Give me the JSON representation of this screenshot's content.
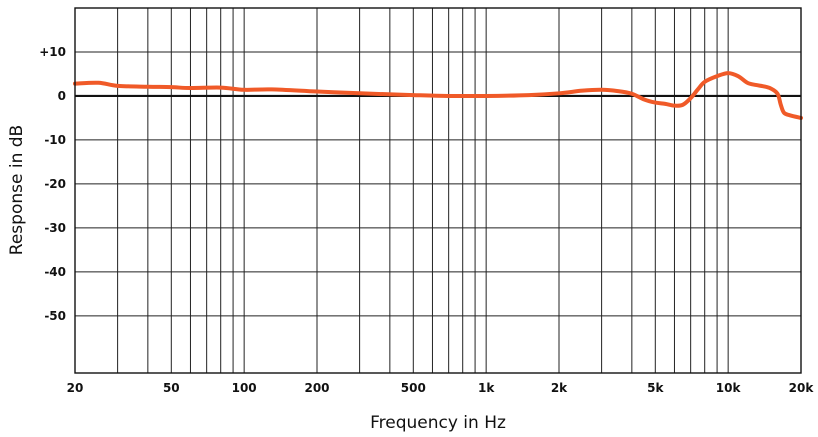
{
  "chart_data": {
    "type": "line",
    "title": "",
    "xlabel": "Frequency in Hz",
    "ylabel": "Response in dB",
    "x_scale": "log",
    "xlim": [
      20,
      20000
    ],
    "ylim": [
      -63,
      20
    ],
    "grid": true,
    "x_tick_labels": [
      {
        "value": 20,
        "label": "20"
      },
      {
        "value": 50,
        "label": "50"
      },
      {
        "value": 100,
        "label": "100"
      },
      {
        "value": 200,
        "label": "200"
      },
      {
        "value": 500,
        "label": "500"
      },
      {
        "value": 1000,
        "label": "1k"
      },
      {
        "value": 2000,
        "label": "2k"
      },
      {
        "value": 5000,
        "label": "5k"
      },
      {
        "value": 10000,
        "label": "10k"
      },
      {
        "value": 20000,
        "label": "20k"
      }
    ],
    "x_gridlines": [
      20,
      30,
      40,
      50,
      60,
      70,
      80,
      90,
      100,
      200,
      300,
      400,
      500,
      600,
      700,
      800,
      900,
      1000,
      2000,
      3000,
      4000,
      5000,
      6000,
      7000,
      8000,
      9000,
      10000,
      20000
    ],
    "y_ticks": [
      {
        "value": 10,
        "label": "+10"
      },
      {
        "value": 0,
        "label": "0"
      },
      {
        "value": -10,
        "label": "-10"
      },
      {
        "value": -20,
        "label": "-20"
      },
      {
        "value": -30,
        "label": "-30"
      },
      {
        "value": -40,
        "label": "-40"
      },
      {
        "value": -50,
        "label": "-50"
      }
    ],
    "reference_line": 0,
    "series": [
      {
        "color": "#f05a28",
        "x": [
          20,
          25,
          30,
          40,
          50,
          60,
          80,
          100,
          130,
          200,
          300,
          500,
          700,
          1000,
          1500,
          2000,
          2500,
          3000,
          3500,
          4000,
          4500,
          5000,
          5500,
          6000,
          6500,
          7000,
          7500,
          8000,
          9000,
          10000,
          11000,
          12000,
          13000,
          14000,
          15000,
          16000,
          16500,
          17000,
          18000,
          20000
        ],
        "y": [
          2.8,
          3.0,
          2.3,
          2.1,
          2.0,
          1.8,
          1.9,
          1.4,
          1.5,
          1.0,
          0.6,
          0.2,
          0.0,
          0.0,
          0.2,
          0.6,
          1.2,
          1.4,
          1.1,
          0.5,
          -0.8,
          -1.5,
          -1.8,
          -2.2,
          -2.0,
          -0.5,
          1.5,
          3.2,
          4.5,
          5.2,
          4.5,
          3.0,
          2.5,
          2.2,
          1.7,
          0.5,
          -2.0,
          -3.8,
          -4.4,
          -5.0
        ]
      }
    ]
  }
}
